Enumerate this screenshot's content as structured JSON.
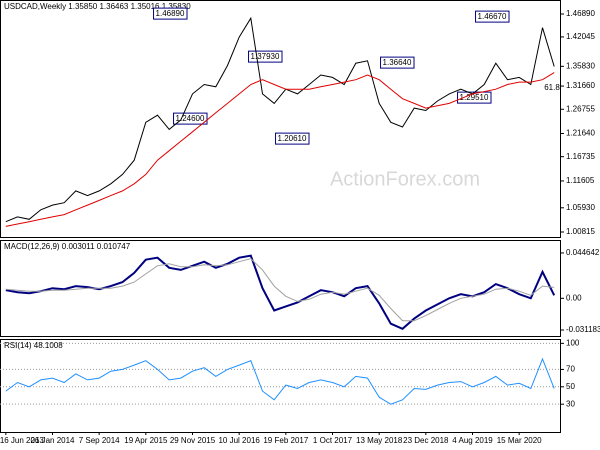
{
  "chart_data": [
    {
      "type": "line",
      "title": "USDCAD,Weekly  1.35850 1.36463 1.35016 1.35830",
      "annotations": [
        "1.46890",
        "1.24600",
        "1.37930",
        "1.20610",
        "1.36640",
        "1.29510",
        "1.46670",
        "61.8"
      ],
      "watermark": "ActionForex.com",
      "series": [
        {
          "color": "#000000",
          "values": [
            1.03,
            1.04,
            1.035,
            1.055,
            1.065,
            1.07,
            1.095,
            1.085,
            1.095,
            1.11,
            1.13,
            1.16,
            1.24,
            1.255,
            1.225,
            1.245,
            1.3,
            1.32,
            1.315,
            1.36,
            1.42,
            1.46,
            1.3,
            1.28,
            1.31,
            1.3,
            1.32,
            1.34,
            1.335,
            1.32,
            1.365,
            1.37,
            1.28,
            1.24,
            1.23,
            1.27,
            1.265,
            1.285,
            1.3,
            1.31,
            1.3,
            1.32,
            1.365,
            1.33,
            1.335,
            1.32,
            1.44,
            1.358
          ]
        },
        {
          "color": "#e00000",
          "values": [
            1.02,
            1.025,
            1.03,
            1.035,
            1.04,
            1.045,
            1.055,
            1.065,
            1.075,
            1.085,
            1.095,
            1.11,
            1.13,
            1.16,
            1.18,
            1.2,
            1.22,
            1.24,
            1.26,
            1.28,
            1.3,
            1.32,
            1.33,
            1.32,
            1.31,
            1.31,
            1.31,
            1.315,
            1.32,
            1.325,
            1.33,
            1.34,
            1.33,
            1.31,
            1.29,
            1.28,
            1.27,
            1.275,
            1.28,
            1.29,
            1.3,
            1.305,
            1.31,
            1.32,
            1.325,
            1.325,
            1.33,
            1.345
          ]
        }
      ],
      "ylim": [
        0.9976,
        1.4985
      ],
      "yticks": [
        {
          "value": 1.4689,
          "label": "1.46890"
        },
        1.42045,
        {
          "value": 1.3583,
          "label": "1.35830"
        },
        {
          "value": 1.3166,
          "label": "1.31660"
        },
        1.26755,
        {
          "value": 1.2164,
          "label": "1.21640"
        },
        1.16735,
        1.11605,
        {
          "value": 1.0593,
          "label": "1.05930"
        },
        1.00815
      ]
    },
    {
      "type": "line",
      "title": "MACD(12,26,9) 0.003011 0.010747",
      "series": [
        {
          "color": "#000080",
          "values": [
            0.008,
            0.006,
            0.005,
            0.007,
            0.01,
            0.009,
            0.012,
            0.011,
            0.009,
            0.012,
            0.016,
            0.025,
            0.038,
            0.04,
            0.03,
            0.028,
            0.032,
            0.036,
            0.03,
            0.034,
            0.04,
            0.042,
            0.01,
            -0.012,
            -0.008,
            -0.004,
            0.002,
            0.008,
            0.006,
            0.002,
            0.01,
            0.012,
            -0.005,
            -0.025,
            -0.03,
            -0.02,
            -0.012,
            -0.006,
            0.0,
            0.004,
            0.002,
            0.006,
            0.014,
            0.01,
            0.004,
            0.0,
            0.026,
            0.003011
          ]
        },
        {
          "color": "#a0a0a0",
          "values": [
            0.009,
            0.008,
            0.007,
            0.007,
            0.008,
            0.008,
            0.009,
            0.01,
            0.01,
            0.01,
            0.012,
            0.016,
            0.024,
            0.032,
            0.034,
            0.031,
            0.031,
            0.033,
            0.032,
            0.033,
            0.036,
            0.039,
            0.028,
            0.012,
            0.002,
            -0.003,
            -0.001,
            0.004,
            0.006,
            0.004,
            0.007,
            0.01,
            0.003,
            -0.01,
            -0.022,
            -0.022,
            -0.017,
            -0.011,
            -0.005,
            0.0,
            0.002,
            0.004,
            0.009,
            0.01,
            0.007,
            0.003,
            0.012,
            0.010747
          ]
        }
      ],
      "ylim": [
        -0.0371,
        0.0574
      ],
      "yticks": [
        0.044642,
        {
          "value": 0,
          "label": "0.00"
        },
        -0.031183
      ]
    },
    {
      "type": "line",
      "title": "RSI(14) 48.1008",
      "categories": [
        "16 Jun 2013",
        null,
        null,
        null,
        "26 Jan 2014",
        null,
        null,
        null,
        "7 Sep 2014",
        null,
        null,
        null,
        "19 Apr 2015",
        null,
        null,
        null,
        "29 Nov 2015",
        null,
        null,
        null,
        "10 Jul 2016",
        null,
        null,
        null,
        "19 Feb 2017",
        null,
        null,
        null,
        "1 Oct 2017",
        null,
        null,
        null,
        "13 May 2018",
        null,
        null,
        null,
        "23 Dec 2018",
        null,
        null,
        null,
        "4 Aug 2019",
        null,
        null,
        null,
        "15 Mar 2020",
        null,
        null,
        null
      ],
      "series": [
        {
          "color": "#1e90ff",
          "values": [
            45,
            55,
            50,
            58,
            60,
            55,
            65,
            58,
            60,
            68,
            70,
            75,
            80,
            70,
            58,
            60,
            68,
            72,
            62,
            70,
            75,
            80,
            45,
            35,
            52,
            48,
            55,
            58,
            55,
            50,
            62,
            60,
            38,
            30,
            35,
            48,
            47,
            52,
            55,
            56,
            50,
            55,
            62,
            52,
            54,
            48,
            82,
            48.1008
          ]
        }
      ],
      "ylim": [
        -2,
        105
      ],
      "yticks": [
        100,
        70,
        50,
        30
      ]
    }
  ]
}
